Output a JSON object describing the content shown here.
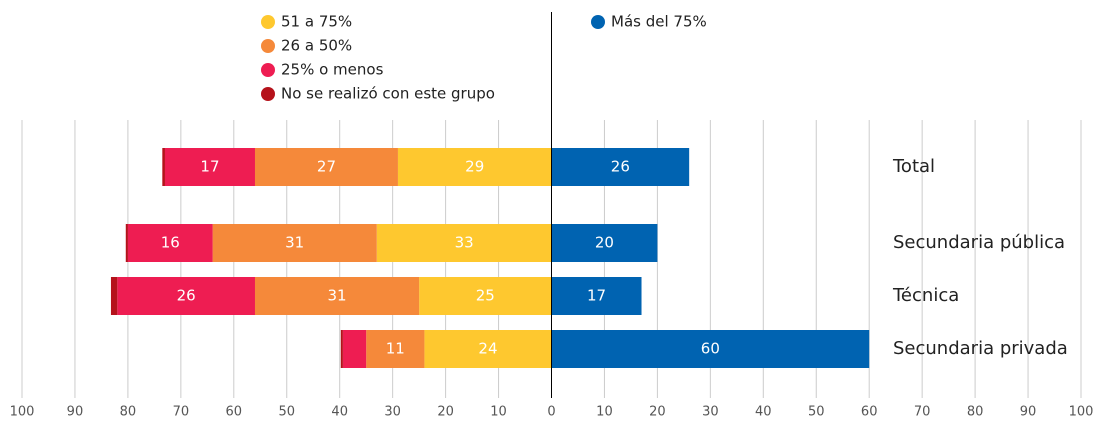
{
  "chart_data": {
    "type": "diverging-bar",
    "categories": [
      "Total",
      "Secundaria pública",
      "Técnica",
      "Secundaria privada"
    ],
    "series": [
      {
        "name": "51 a 75%",
        "color": "#fec82f",
        "side": "left",
        "values": [
          29,
          33,
          25,
          24
        ]
      },
      {
        "name": "26 a 50%",
        "color": "#f5893a",
        "side": "left",
        "values": [
          27,
          31,
          31,
          11
        ]
      },
      {
        "name": "25% o menos",
        "color": "#ee1d52",
        "side": "left",
        "values": [
          17,
          16,
          26,
          4.4
        ]
      },
      {
        "name": "No se realizó con este grupo",
        "color": "#b5121b",
        "side": "left",
        "values": [
          0.5,
          0.4,
          1.2,
          0.4
        ]
      },
      {
        "name": "Más del 75%",
        "color": "#0063b1",
        "side": "right",
        "values": [
          26,
          20,
          17,
          60
        ]
      }
    ],
    "xlim": [
      -100,
      100
    ],
    "xticks": [
      {
        "value": -100,
        "label": "100"
      },
      {
        "value": -90,
        "label": "90"
      },
      {
        "value": -80,
        "label": "80"
      },
      {
        "value": -70,
        "label": "70"
      },
      {
        "value": -60,
        "label": "60"
      },
      {
        "value": -50,
        "label": "50"
      },
      {
        "value": -40,
        "label": "40"
      },
      {
        "value": -30,
        "label": "30"
      },
      {
        "value": -20,
        "label": "20"
      },
      {
        "value": -10,
        "label": "10"
      },
      0,
      10,
      20,
      30,
      40,
      50,
      60,
      70,
      80,
      90,
      100
    ],
    "grid": true
  }
}
